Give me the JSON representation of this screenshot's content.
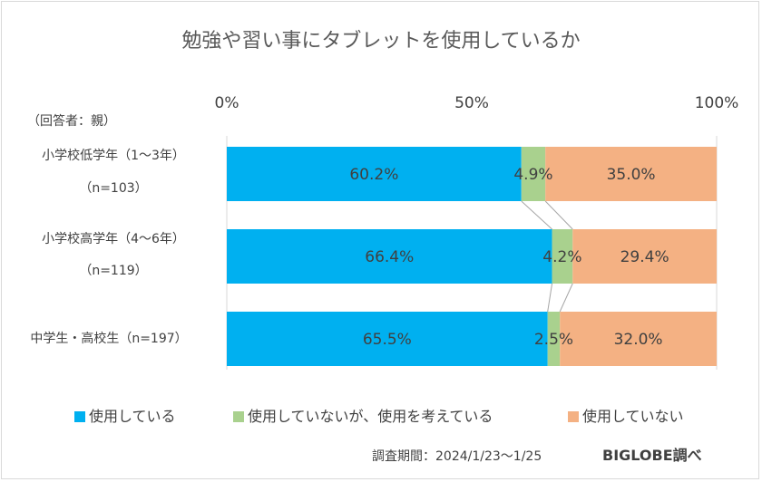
{
  "chart_data": {
    "type": "bar",
    "orientation": "horizontal",
    "stacked": "percent",
    "title": "勉強や習い事にタブレットを使用しているか",
    "respondent_note": "（回答者：親）",
    "x_ticks": [
      "0%",
      "50%",
      "100%"
    ],
    "xlim": [
      0,
      100
    ],
    "categories": [
      [
        "小学校低学年（1～3年）",
        "（n=103）"
      ],
      [
        "小学校高学年（4～6年）",
        "（n=119）"
      ],
      [
        "中学生・高校生（n=197）"
      ]
    ],
    "series": [
      {
        "name": "使用している",
        "color": "#00b0f0",
        "values": [
          60.2,
          66.4,
          65.5
        ],
        "labels": [
          "60.2%",
          "66.4%",
          "65.5%"
        ]
      },
      {
        "name": "使用していないが、使用を考えている",
        "color": "#a9d18e",
        "values": [
          4.9,
          4.2,
          2.5
        ],
        "labels": [
          "4.9%",
          "4.2%",
          "2.5%"
        ]
      },
      {
        "name": "使用していない",
        "color": "#f4b183",
        "values": [
          35.0,
          29.4,
          32.0
        ],
        "labels": [
          "35.0%",
          "29.4%",
          "32.0%"
        ]
      }
    ],
    "legend_position": "bottom",
    "grid": false,
    "series_lines": true
  },
  "footer": {
    "survey_period": "調査期間：2024/1/23～1/25",
    "brand": "BIGLOBE調べ"
  }
}
